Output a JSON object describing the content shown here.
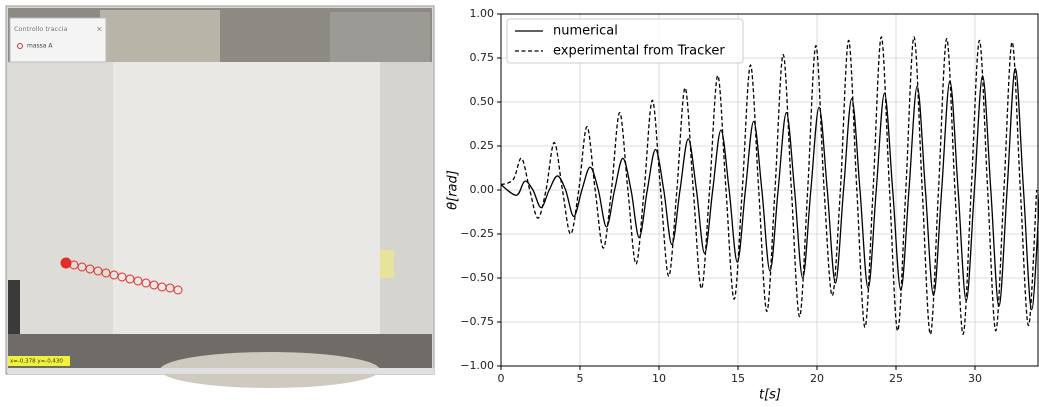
{
  "photo": {
    "dialog_title": "Controllo traccia",
    "dialog_item": "massa A",
    "readout": "x=-0,378 y=-0,430"
  },
  "chart_data": {
    "type": "line",
    "xlabel": "t[s]",
    "ylabel": "θ[rad]",
    "xlim": [
      0,
      34.05
    ],
    "ylim": [
      -1,
      1
    ],
    "xticks": [
      0,
      5,
      10,
      15,
      20,
      25,
      30
    ],
    "yticks": [
      {
        "value": -1,
        "label": "−1.00"
      },
      {
        "value": -0.75,
        "label": "−0.75"
      },
      {
        "value": -0.5,
        "label": "−0.50"
      },
      {
        "value": -0.25,
        "label": "−0.25"
      },
      {
        "value": 0,
        "label": "0.00"
      },
      {
        "value": 0.25,
        "label": "0.25"
      },
      {
        "value": 0.5,
        "label": "0.50"
      },
      {
        "value": 0.75,
        "label": "0.75"
      },
      {
        "value": 1,
        "label": "1.00"
      }
    ],
    "grid": true,
    "legend": "upper-left",
    "series": [
      {
        "name": "numerical",
        "color": "#000000",
        "dash": "solid",
        "x": [
          0,
          0.98,
          1.5,
          2.02,
          2.535,
          3.05,
          3.57,
          4.09,
          4.605,
          5.12,
          5.64,
          6.16,
          6.675,
          7.19,
          7.71,
          8.23,
          8.745,
          9.26,
          9.78,
          10.3,
          10.815,
          11.33,
          11.85,
          12.37,
          12.885,
          13.4,
          13.92,
          14.44,
          14.955,
          15.47,
          15.99,
          16.51,
          17.025,
          17.54,
          18.06,
          18.58,
          19.095,
          19.61,
          20.13,
          20.65,
          21.165,
          21.68,
          22.2,
          22.72,
          23.235,
          23.75,
          24.27,
          24.79,
          25.305,
          25.82,
          26.34,
          26.86,
          27.375,
          27.89,
          28.41,
          28.93,
          29.445,
          29.96,
          30.48,
          31.0,
          31.515,
          32.03,
          32.55,
          33.07,
          33.585,
          34.1
        ],
        "values": [
          0.03,
          -0.03,
          0.05,
          0,
          -0.1,
          0,
          0.08,
          0,
          -0.15,
          0,
          0.13,
          0,
          -0.21,
          0,
          0.18,
          0,
          -0.27,
          0,
          0.23,
          0,
          -0.31,
          0,
          0.29,
          0,
          -0.36,
          0,
          0.34,
          0,
          -0.41,
          0,
          0.39,
          0,
          -0.46,
          0,
          0.44,
          0,
          -0.5,
          0,
          0.47,
          0,
          -0.53,
          0,
          0.52,
          0,
          -0.56,
          0,
          0.55,
          0,
          -0.57,
          0,
          0.59,
          0,
          -0.6,
          0,
          0.62,
          0,
          -0.63,
          0,
          0.65,
          0,
          -0.66,
          0,
          0.69,
          0,
          -0.68,
          0
        ]
      },
      {
        "name": "experimental from Tracker",
        "color": "#000000",
        "dash": "dashed",
        "x": [
          0,
          0.78,
          1.3,
          1.82,
          2.335,
          2.85,
          3.37,
          3.89,
          4.405,
          4.92,
          5.44,
          5.96,
          6.475,
          6.99,
          7.51,
          8.03,
          8.545,
          9.06,
          9.58,
          10.1,
          10.615,
          11.13,
          11.65,
          12.17,
          12.685,
          13.2,
          13.72,
          14.24,
          14.755,
          15.27,
          15.79,
          16.31,
          16.825,
          17.34,
          17.86,
          18.38,
          18.895,
          19.41,
          19.93,
          20.45,
          20.965,
          21.48,
          22.0,
          22.52,
          23.035,
          23.55,
          24.07,
          24.59,
          25.105,
          25.62,
          26.14,
          26.66,
          27.175,
          27.69,
          28.21,
          28.73,
          29.245,
          29.76,
          30.28,
          30.8,
          31.315,
          31.83,
          32.35,
          32.87,
          33.385,
          33.9
        ],
        "values": [
          0.03,
          0.06,
          0.18,
          0,
          -0.16,
          0,
          0.27,
          0,
          -0.25,
          0,
          0.36,
          0,
          -0.33,
          0,
          0.44,
          0,
          -0.42,
          0,
          0.51,
          0,
          -0.49,
          0,
          0.58,
          0,
          -0.56,
          0,
          0.65,
          0,
          -0.62,
          0,
          0.71,
          0,
          -0.69,
          0,
          0.77,
          0,
          -0.72,
          0,
          0.82,
          0,
          -0.6,
          0,
          0.85,
          0,
          -0.78,
          0,
          0.87,
          0,
          -0.8,
          0,
          0.87,
          0,
          -0.82,
          0,
          0.86,
          0,
          -0.82,
          0,
          0.85,
          0,
          -0.8,
          0,
          0.84,
          0,
          -0.77,
          0
        ]
      }
    ]
  }
}
